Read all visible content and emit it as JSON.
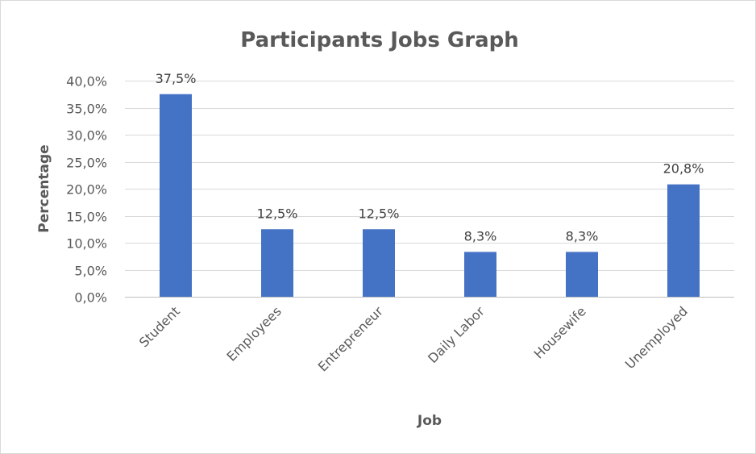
{
  "chart_data": {
    "type": "bar",
    "title": "Participants Jobs Graph",
    "xlabel": "Job",
    "ylabel": "Percentage",
    "categories": [
      "Student",
      "Employees",
      "Entrepreneur",
      "Daily Labor",
      "Housewife",
      "Unemployed"
    ],
    "values": [
      37.5,
      12.5,
      12.5,
      8.3,
      8.3,
      20.8
    ],
    "data_labels": [
      "37,5%",
      "12,5%",
      "12,5%",
      "8,3%",
      "8,3%",
      "20,8%"
    ],
    "ylim": [
      0,
      40
    ],
    "y_ticks": [
      0,
      5,
      10,
      15,
      20,
      25,
      30,
      35,
      40
    ],
    "y_tick_labels": [
      "0,0%",
      "5,0%",
      "10,0%",
      "15,0%",
      "20,0%",
      "25,0%",
      "30,0%",
      "35,0%",
      "40,0%"
    ],
    "grid": true,
    "legend": "none",
    "bar_color": "#4472c4"
  }
}
